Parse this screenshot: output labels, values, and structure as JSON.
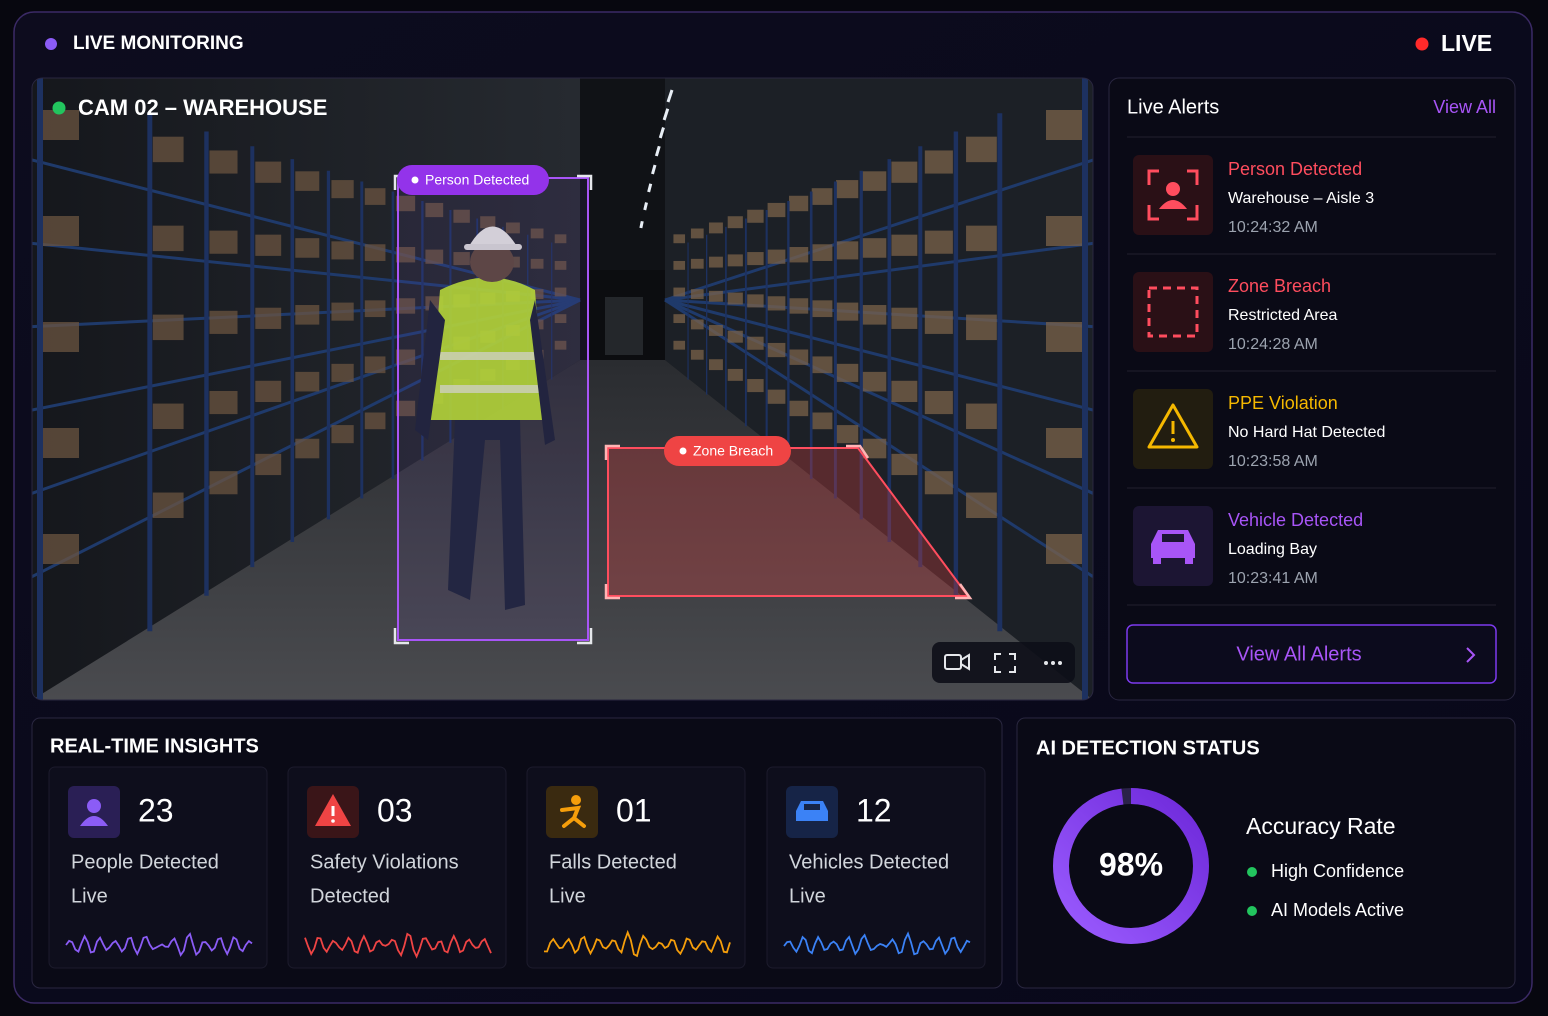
{
  "header": {
    "title": "LIVE MONITORING",
    "status": "LIVE"
  },
  "camera": {
    "title": "CAM 02 – WAREHOUSE",
    "detections": [
      {
        "label": "Person Detected"
      },
      {
        "label": "Zone Breach"
      }
    ]
  },
  "alerts": {
    "title": "Live Alerts",
    "view_all": "View All",
    "items": [
      {
        "type": "Person Detected",
        "location": "Warehouse – Aisle 3",
        "time": "10:24:32 AM"
      },
      {
        "type": "Zone Breach",
        "location": "Restricted Area",
        "time": "10:24:28 AM"
      },
      {
        "type": "PPE Violation",
        "location": "No Hard Hat Detected",
        "time": "10:23:58 AM"
      },
      {
        "type": "Vehicle Detected",
        "location": "Loading Bay",
        "time": "10:23:41 AM"
      }
    ],
    "button": "View All Alerts"
  },
  "insights": {
    "title": "REAL-TIME INSIGHTS",
    "cards": [
      {
        "value": "23",
        "label": "People Detected",
        "sub": "Live"
      },
      {
        "value": "03",
        "label": "Safety Violations",
        "sub": "Detected"
      },
      {
        "value": "01",
        "label": "Falls Detected",
        "sub": "Live"
      },
      {
        "value": "12",
        "label": "Vehicles Detected",
        "sub": "Live"
      }
    ]
  },
  "ai_status": {
    "title": "AI DETECTION STATUS",
    "accuracy": {
      "value": 98,
      "label": "98%"
    },
    "heading": "Accuracy Rate",
    "items": [
      "High Confidence",
      "AI Models Active"
    ]
  }
}
